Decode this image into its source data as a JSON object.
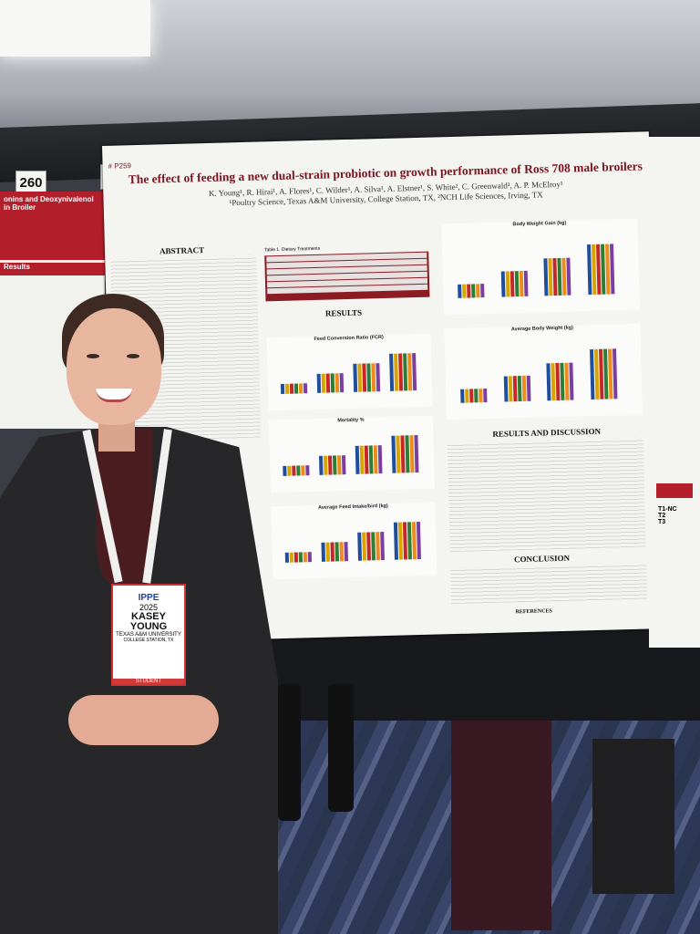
{
  "booths": {
    "left": "260",
    "right": "259"
  },
  "poster": {
    "number": "# P259",
    "title": "The effect of feeding a new dual-strain probiotic on growth performance of Ross 708 male broilers",
    "authors": "K. Young¹, R. Hirai¹, A. Flores¹, C. Wilder¹, A. Silva¹, A. Elstner¹, S. White², C. Greenwald², A. P. McElroy¹",
    "affiliations": "¹Poultry Science, Texas A&M University, College Station, TX, ²NCH Life Sciences, Irving, TX",
    "sections": {
      "abstract": "ABSTRACT",
      "results": "RESULTS",
      "results_discussion": "RESULTS AND DISCUSSION",
      "conclusion": "CONCLUSION",
      "references": "REFERENCES"
    },
    "table_title": "Table 1. Dietary Treatments",
    "charts": {
      "fcr": "Feed Conversion Ratio (FCR)",
      "mortality": "Mortality %",
      "feed_intake": "Average Feed Intake/bird (kg)",
      "bwg": "Body Weight Gain (kg)",
      "abw": "Average Body Weight (kg)"
    }
  },
  "left_poster": {
    "title": "onins and Deoxynivalenol in Broiler",
    "subtitle": "Results"
  },
  "right_poster": {
    "label": "T1-NC\nT2\nT3"
  },
  "badge": {
    "logo": "IPPE",
    "year": "2025",
    "first": "KASEY",
    "last": "YOUNG",
    "org": "TEXAS A&M UNIVERSITY",
    "city": "COLLEGE STATION, TX",
    "role": "STUDENT"
  },
  "colors": {
    "trt1": "#1f4e9c",
    "trt2": "#d9a400",
    "trt3": "#c62828",
    "trt4": "#2e7d32",
    "trt5": "#ef8a1c",
    "trt6": "#7b3fa0"
  }
}
